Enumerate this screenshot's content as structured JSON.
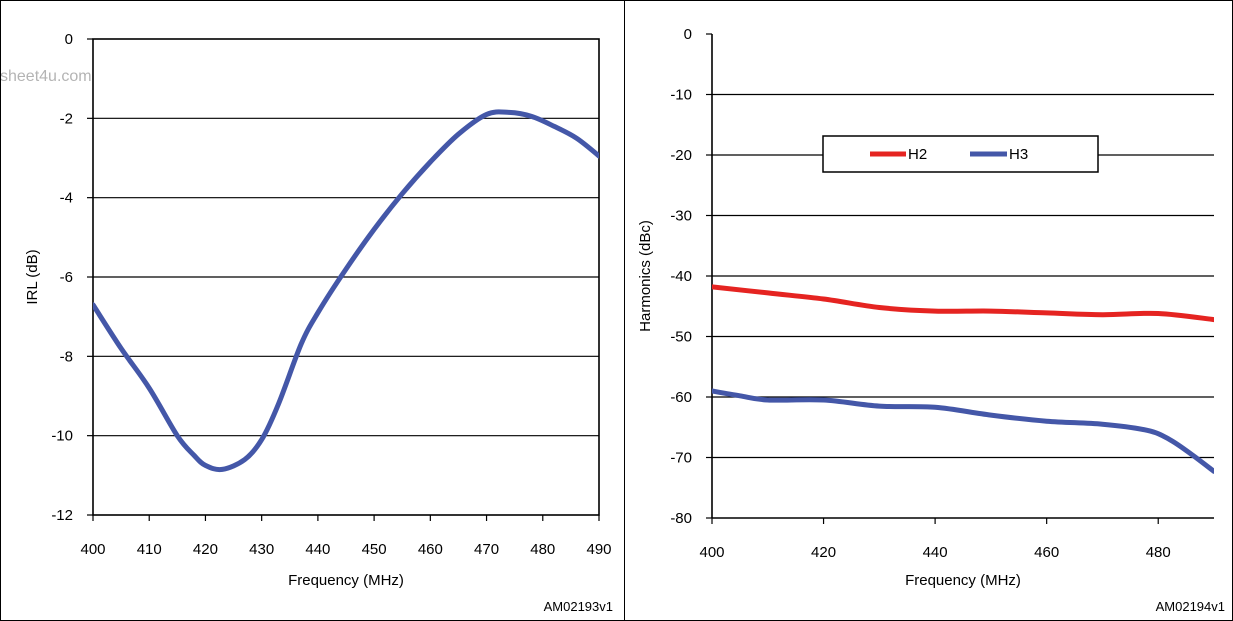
{
  "watermark": "sheet4u.com",
  "chart_data": [
    {
      "type": "line",
      "title": "",
      "xlabel": "Frequency (MHz)",
      "ylabel": "IRL (dB)",
      "xlim": [
        400,
        490
      ],
      "ylim": [
        -12,
        0
      ],
      "xticks": [
        400,
        410,
        420,
        430,
        440,
        450,
        460,
        470,
        480,
        490
      ],
      "yticks": [
        0,
        -2,
        -4,
        -6,
        -8,
        -10,
        -12
      ],
      "grid": "horizontal",
      "legend": null,
      "code": "AM02193v1",
      "series": [
        {
          "color": "#4457a8",
          "x": [
            400,
            405,
            410,
            415,
            418,
            420,
            423,
            427,
            430,
            433,
            437,
            440,
            445,
            450,
            455,
            460,
            465,
            470,
            474,
            478,
            482,
            486,
            490
          ],
          "y": [
            -6.7,
            -7.8,
            -8.8,
            -10.0,
            -10.5,
            -10.75,
            -10.85,
            -10.6,
            -10.1,
            -9.2,
            -7.7,
            -6.9,
            -5.8,
            -4.8,
            -3.9,
            -3.1,
            -2.4,
            -1.9,
            -1.85,
            -1.95,
            -2.2,
            -2.5,
            -2.95
          ]
        }
      ]
    },
    {
      "type": "line",
      "title": "",
      "xlabel": "Frequency (MHz)",
      "ylabel": "Harmonics (dBc)",
      "xlim": [
        400,
        490
      ],
      "ylim": [
        -80,
        0
      ],
      "xticks": [
        400,
        420,
        440,
        460,
        480
      ],
      "yticks": [
        0,
        -10,
        -20,
        -30,
        -40,
        -50,
        -60,
        -70,
        -80
      ],
      "grid": "horizontal",
      "legend": "top-center",
      "code": "AM02194v1",
      "series": [
        {
          "name": "H2",
          "color": "#e52421",
          "x": [
            400,
            410,
            420,
            430,
            440,
            450,
            460,
            470,
            480,
            490
          ],
          "y": [
            -41.8,
            -42.8,
            -43.8,
            -45.2,
            -45.8,
            -45.8,
            -46.1,
            -46.4,
            -46.2,
            -47.2
          ]
        },
        {
          "name": "H3",
          "color": "#4457a8",
          "x": [
            400,
            405,
            410,
            420,
            430,
            440,
            450,
            460,
            470,
            478,
            482,
            486,
            490
          ],
          "y": [
            -59.0,
            -59.8,
            -60.5,
            -60.5,
            -61.5,
            -61.7,
            -63.0,
            -64.0,
            -64.5,
            -65.5,
            -67.0,
            -69.5,
            -72.3
          ]
        }
      ]
    }
  ]
}
